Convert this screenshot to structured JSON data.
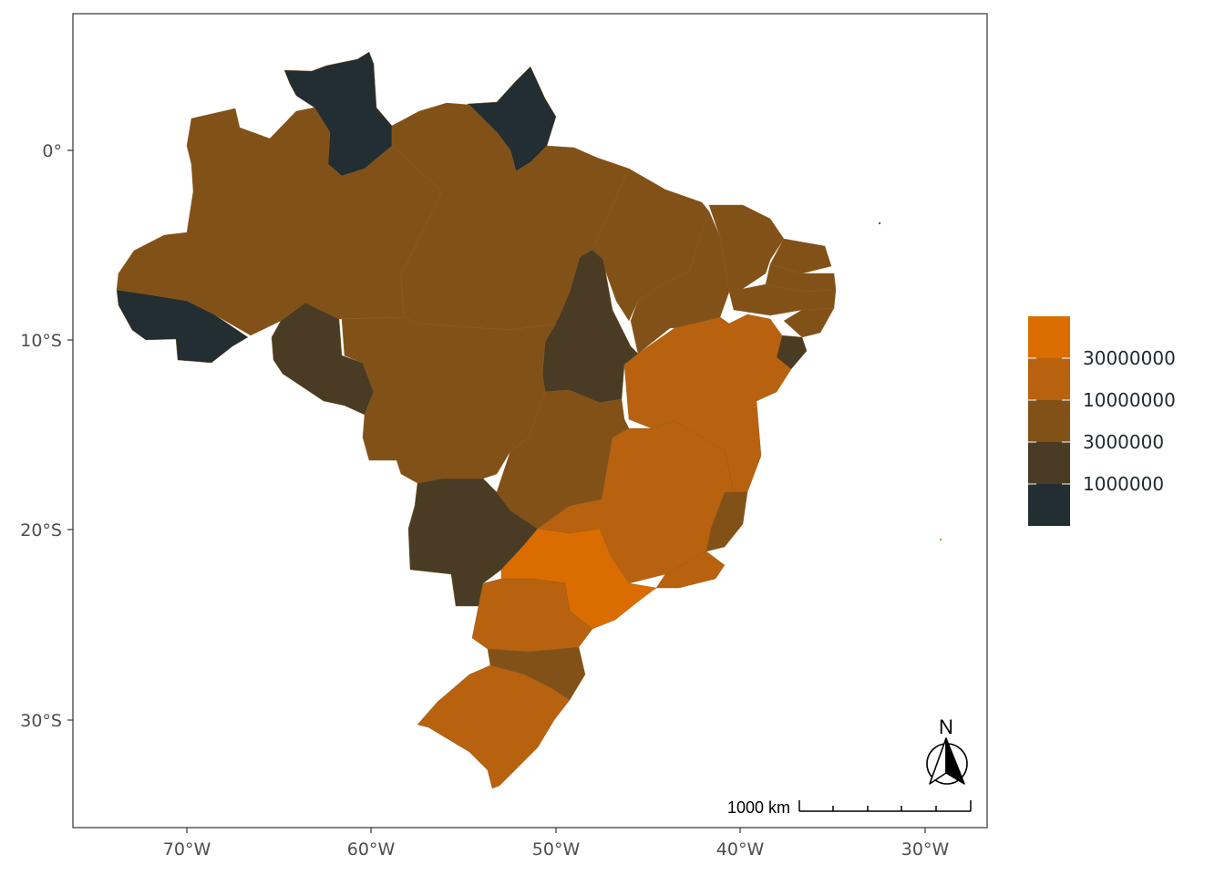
{
  "map": {
    "axes": {
      "x_ticks": [
        "70°W",
        "60°W",
        "50°W",
        "40°W",
        "30°W"
      ],
      "y_ticks": [
        "0°",
        "10°S",
        "20°S",
        "30°S"
      ]
    },
    "legend": {
      "breaks": [
        "30000000",
        "10000000",
        "3000000",
        "1000000"
      ],
      "colors": [
        "#db6d00",
        "#b8620f",
        "#825118",
        "#4a3c24",
        "#222e31"
      ]
    },
    "scale_bar": {
      "label": "1000 km"
    },
    "north_arrow": {
      "label": "N"
    },
    "classes": {
      "c1": "#222e31",
      "c2": "#4a3c24",
      "c3": "#825118",
      "c4": "#b8620f",
      "c5": "#db6d00"
    }
  }
}
